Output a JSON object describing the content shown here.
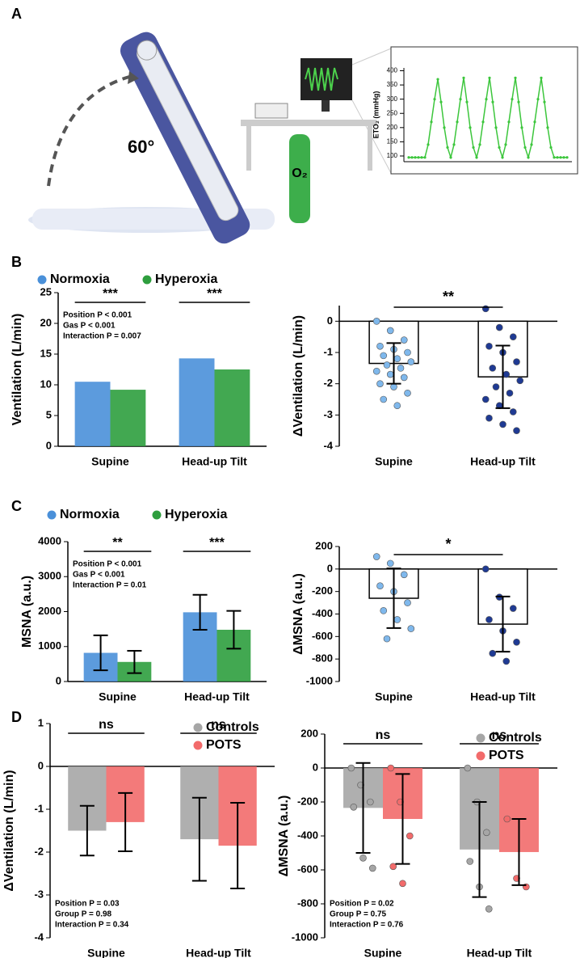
{
  "panels": [
    "A",
    "B",
    "C",
    "D"
  ],
  "illustration": {
    "angle_label": "60°",
    "o2_label": "O₂"
  },
  "chart_data": [
    {
      "type": "line",
      "ylabel": "ETO₂ (mmHg)",
      "ylim": [
        80,
        410
      ],
      "yticks": [
        100,
        150,
        200,
        250,
        300,
        350,
        400
      ],
      "color": "#3cc63c",
      "values": [
        95,
        95,
        95,
        95,
        95,
        95,
        140,
        220,
        300,
        370,
        290,
        200,
        130,
        95,
        140,
        220,
        300,
        375,
        290,
        200,
        130,
        95,
        140,
        220,
        300,
        375,
        290,
        200,
        130,
        95,
        140,
        220,
        300,
        375,
        290,
        200,
        130,
        95,
        140,
        220,
        300,
        375,
        290,
        200,
        130,
        95,
        95,
        95,
        95,
        95
      ]
    },
    {
      "type": "bar",
      "ylabel": "Ventilation (L/min)",
      "categories": [
        "Supine",
        "Head-up Tilt"
      ],
      "ylim": [
        0,
        25
      ],
      "yticks": [
        0,
        5,
        10,
        15,
        20,
        25
      ],
      "legend": "top",
      "series": [
        {
          "name": "Normoxia",
          "color": "#4a90d9",
          "values": [
            10.5,
            14.3
          ]
        },
        {
          "name": "Hyperoxia",
          "color": "#2e9e3e",
          "values": [
            9.2,
            12.5
          ]
        }
      ],
      "significance": [
        "***",
        "***"
      ],
      "stats": [
        "Position P < 0.001",
        "Gas P < 0.001",
        "Interaction P = 0.007"
      ]
    },
    {
      "type": "bar",
      "ylabel": "ΔVentilation (L/min)",
      "categories": [
        "Supine",
        "Head-up Tilt"
      ],
      "ylim": [
        -4,
        0.5
      ],
      "yticks": [
        -4,
        -3,
        -2,
        -1,
        0
      ],
      "color": "#ffffff",
      "values": [
        -1.35,
        -1.78
      ],
      "errors": [
        0.65,
        1.0
      ],
      "point_colors": [
        "#7fb8ec",
        "#1f3a93"
      ],
      "points": [
        [
          0,
          -0.3,
          -0.6,
          -0.8,
          -0.9,
          -1.0,
          -1.1,
          -1.2,
          -1.3,
          -1.4,
          -1.5,
          -1.6,
          -1.7,
          -1.8,
          -2.0,
          -2.1,
          -2.3,
          -2.5,
          -2.7
        ],
        [
          0.4,
          -0.2,
          -0.5,
          -0.8,
          -1.0,
          -1.3,
          -1.5,
          -1.7,
          -1.9,
          -2.1,
          -2.3,
          -2.5,
          -2.7,
          -2.9,
          -3.1,
          -3.3,
          -3.5
        ]
      ],
      "significance": "**"
    },
    {
      "type": "bar",
      "ylabel": "MSNA (a.u.)",
      "categories": [
        "Supine",
        "Head-up Tilt"
      ],
      "ylim": [
        0,
        4000
      ],
      "yticks": [
        0,
        1000,
        2000,
        3000,
        4000
      ],
      "legend": "top",
      "series": [
        {
          "name": "Normoxia",
          "color": "#4a90d9",
          "values": [
            820,
            1980
          ],
          "errors": [
            500,
            500
          ]
        },
        {
          "name": "Hyperoxia",
          "color": "#2e9e3e",
          "values": [
            560,
            1480
          ],
          "errors": [
            320,
            540
          ]
        }
      ],
      "significance": [
        "**",
        "***"
      ],
      "stats": [
        "Position P < 0.001",
        "Gas P < 0.001",
        "Interaction P = 0.01"
      ]
    },
    {
      "type": "bar",
      "ylabel": "ΔMSNA (a.u.)",
      "categories": [
        "Supine",
        "Head-up Tilt"
      ],
      "ylim": [
        -1000,
        200
      ],
      "yticks": [
        -1000,
        -800,
        -600,
        -400,
        -200,
        0,
        200
      ],
      "color": "#ffffff",
      "values": [
        -260,
        -490
      ],
      "errors": [
        265,
        245
      ],
      "point_colors": [
        "#7fb8ec",
        "#1f3a93"
      ],
      "points": [
        [
          110,
          50,
          -50,
          -150,
          -200,
          -300,
          -370,
          -450,
          -530,
          -620
        ],
        [
          0,
          -250,
          -350,
          -450,
          -550,
          -650,
          -750,
          -820
        ]
      ],
      "significance": "*"
    },
    {
      "type": "bar",
      "ylabel": "ΔVentilation (L/min)",
      "categories": [
        "Supine",
        "Head-up Tilt"
      ],
      "ylim": [
        -4,
        1
      ],
      "yticks": [
        -4,
        -3,
        -2,
        -1,
        0,
        1
      ],
      "legend": "top-right",
      "series": [
        {
          "name": "Controls",
          "color": "#a6a6a6",
          "values": [
            -1.5,
            -1.7
          ],
          "errors": [
            0.58,
            0.97
          ]
        },
        {
          "name": "POTS",
          "color": "#f26b6b",
          "values": [
            -1.3,
            -1.85
          ],
          "errors": [
            0.68,
            1.0
          ]
        }
      ],
      "significance": [
        "ns",
        "ns"
      ],
      "stats": [
        "Position P = 0.03",
        "Group P = 0.98",
        "Interaction P = 0.34"
      ]
    },
    {
      "type": "bar",
      "ylabel": "ΔMSNA (a.u.)",
      "categories": [
        "Supine",
        "Head-up Tilt"
      ],
      "ylim": [
        -1000,
        200
      ],
      "yticks": [
        -1000,
        -800,
        -600,
        -400,
        -200,
        0,
        200
      ],
      "legend": "top-right",
      "series": [
        {
          "name": "Controls",
          "color": "#a6a6a6",
          "values": [
            -235,
            -480
          ],
          "errors": [
            265,
            280
          ],
          "points": [
            [
              0,
              -100,
              -200,
              -230,
              -530,
              -590
            ],
            [
              0,
              -200,
              -380,
              -550,
              -700,
              -830
            ]
          ]
        },
        {
          "name": "POTS",
          "color": "#f26b6b",
          "values": [
            -300,
            -495
          ],
          "errors": [
            265,
            195
          ],
          "points": [
            [
              0,
              -200,
              -400,
              -580,
              -680
            ],
            [
              -300,
              -650,
              -700
            ]
          ]
        }
      ],
      "significance": [
        "ns",
        "ns"
      ],
      "stats": [
        "Position P = 0.02",
        "Group P = 0.75",
        "Interaction P = 0.76"
      ]
    }
  ]
}
